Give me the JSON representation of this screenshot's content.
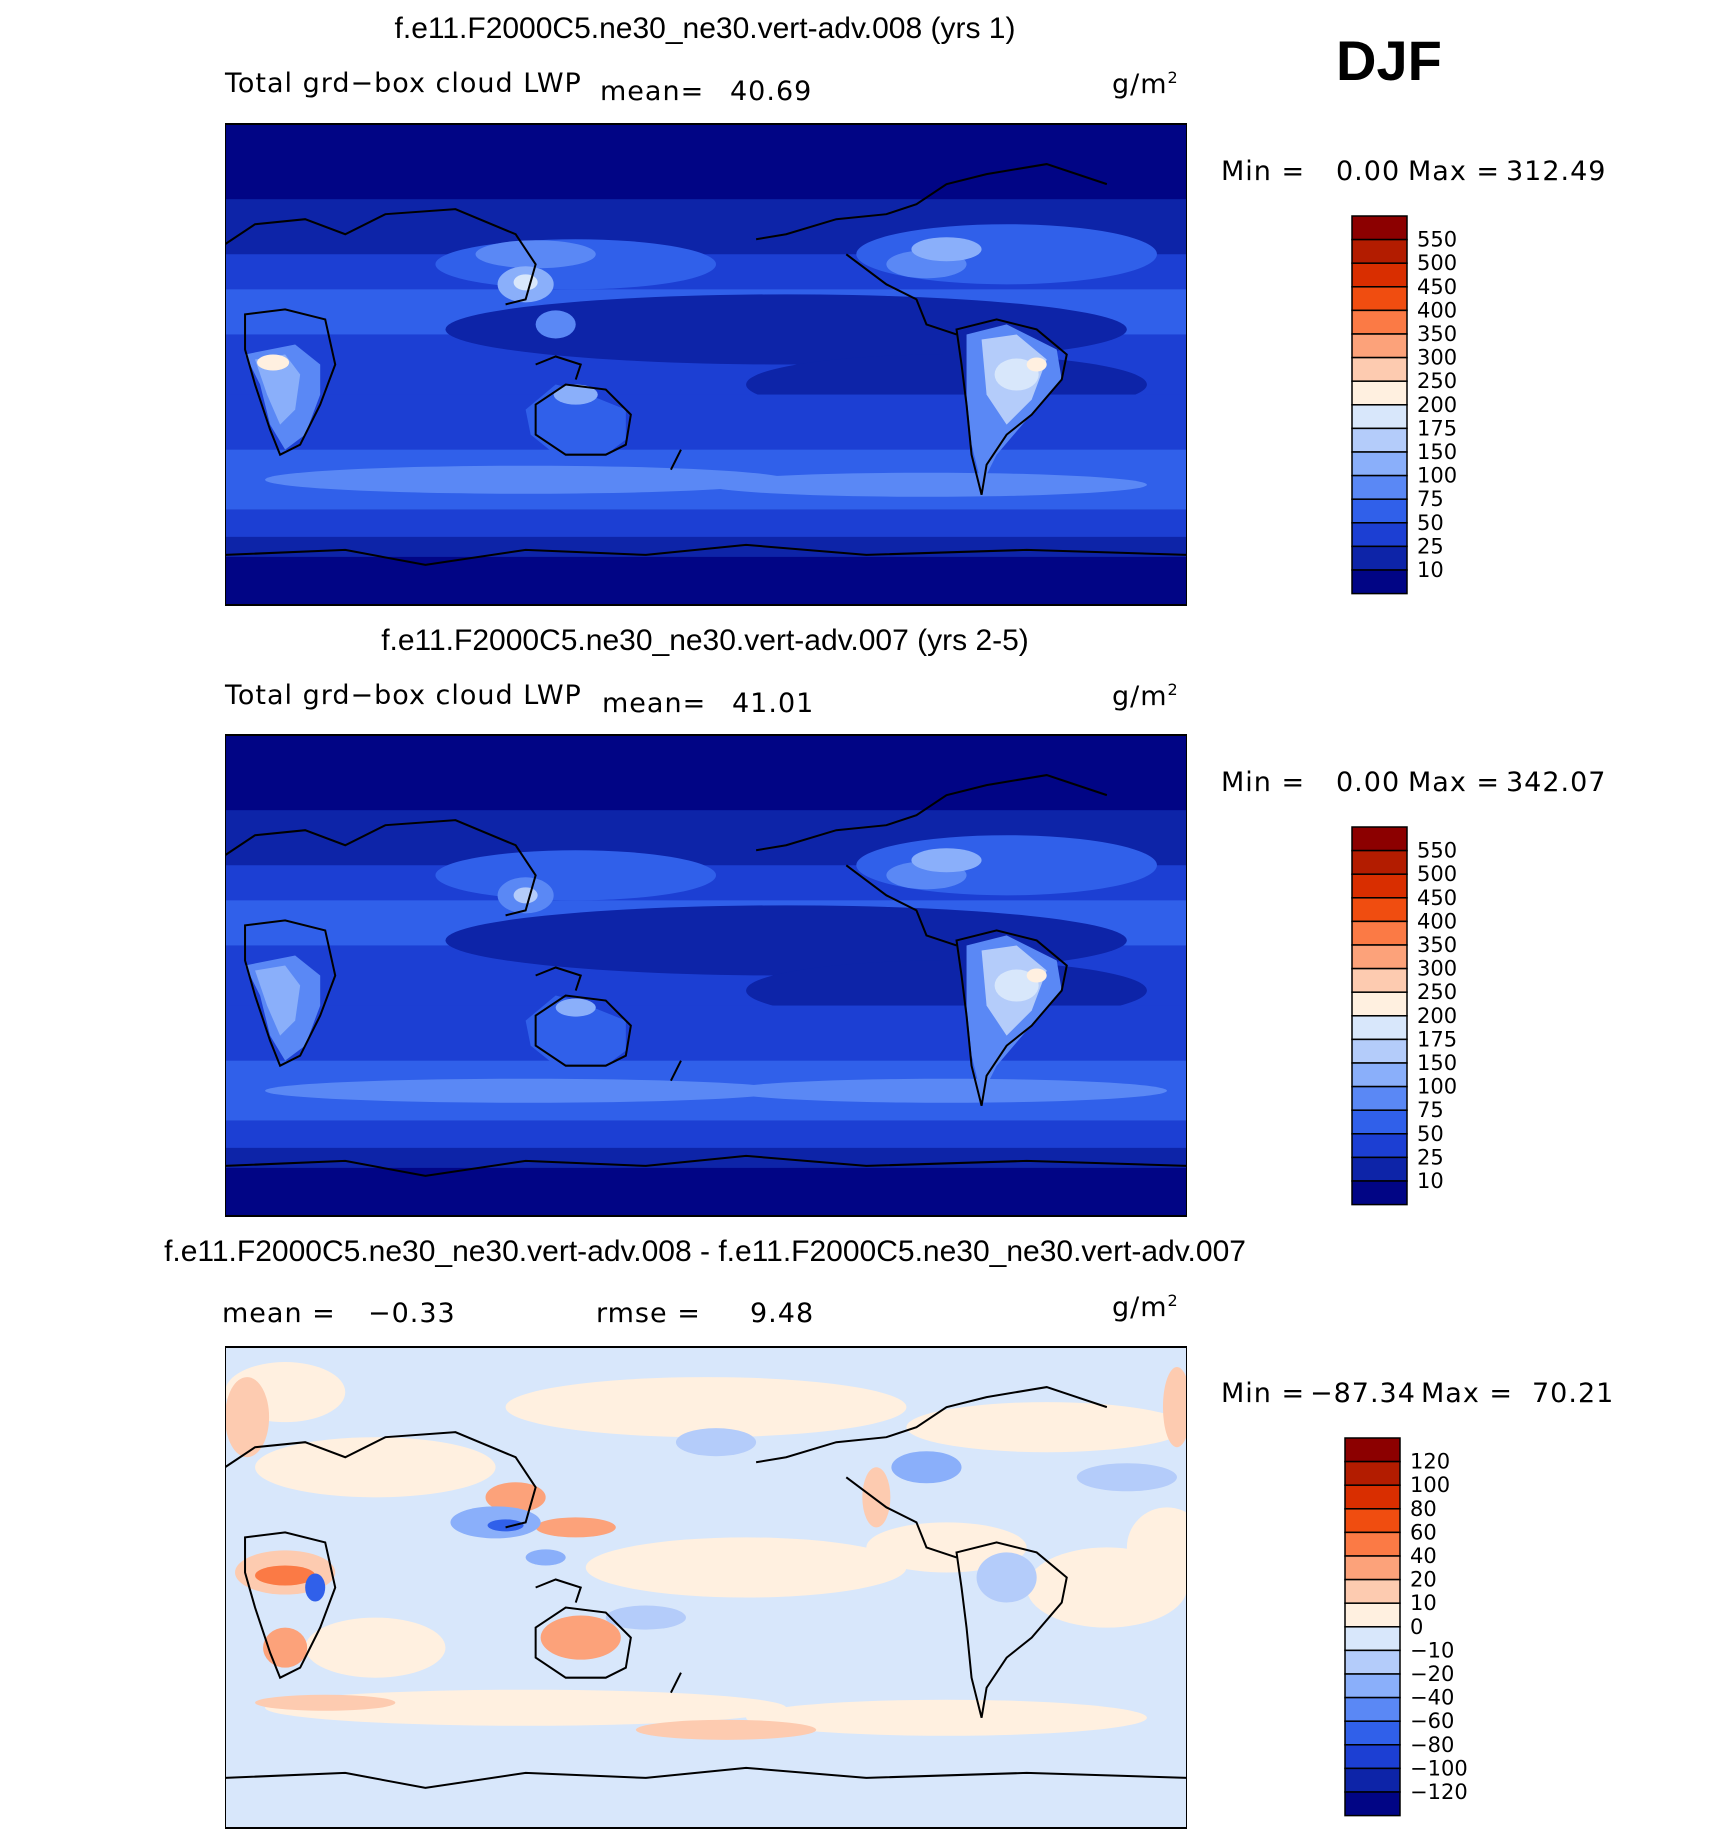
{
  "season": "DJF",
  "unit_prefix": "g/m",
  "unit_exp": "2",
  "panels": [
    {
      "title": "f.e11.F2000C5.ne30_ne30.vert-adv.008 (yrs 1)",
      "variable": "Total grd−box cloud LWP",
      "stat1_label": "mean=",
      "stat1_value": "40.69",
      "min_label": "Min =",
      "min_value": "0.00",
      "max_label": "Max =",
      "max_value": "312.49"
    },
    {
      "title": "f.e11.F2000C5.ne30_ne30.vert-adv.007 (yrs 2-5)",
      "variable": "Total grd−box cloud LWP",
      "stat1_label": "mean=",
      "stat1_value": "41.01",
      "min_label": "Min =",
      "min_value": "0.00",
      "max_label": "Max =",
      "max_value": "342.07"
    },
    {
      "title": "f.e11.F2000C5.ne30_ne30.vert-adv.008 - f.e11.F2000C5.ne30_ne30.vert-adv.007",
      "stat1_label": "mean =",
      "stat1_value": "−0.33",
      "stat2_label": "rmse =",
      "stat2_value": "9.48",
      "min_label": "Min =",
      "min_value": "−87.34",
      "max_label": "Max =",
      "max_value": "70.21"
    }
  ],
  "chart_data": [
    {
      "type": "heatmap",
      "title": "f.e11.F2000C5.ne30_ne30.vert-adv.008 (yrs 1)",
      "subtitle": "Total grd−box cloud LWP",
      "units": "g/m2",
      "mean": 40.69,
      "min": 0.0,
      "max": 312.49,
      "contour_levels": [
        10,
        25,
        50,
        75,
        100,
        150,
        175,
        200,
        250,
        300,
        350,
        400,
        450,
        500,
        550
      ],
      "colorbar_labels": [
        "550",
        "500",
        "450",
        "400",
        "350",
        "300",
        "250",
        "200",
        "175",
        "150",
        "100",
        "75",
        "50",
        "25",
        "10"
      ],
      "colors": [
        "#8c0000",
        "#b31c00",
        "#d92e00",
        "#f04d10",
        "#fb7a45",
        "#fca27a",
        "#fdcbb0",
        "#fff0e0",
        "#d8e7fb",
        "#b4ccfa",
        "#8aaffa",
        "#5a88f5",
        "#3060ea",
        "#1c3fd3",
        "#0d24a8",
        "#010585"
      ]
    },
    {
      "type": "heatmap",
      "title": "f.e11.F2000C5.ne30_ne30.vert-adv.007 (yrs 2-5)",
      "subtitle": "Total grd−box cloud LWP",
      "units": "g/m2",
      "mean": 41.01,
      "min": 0.0,
      "max": 342.07,
      "contour_levels": [
        10,
        25,
        50,
        75,
        100,
        150,
        175,
        200,
        250,
        300,
        350,
        400,
        450,
        500,
        550
      ],
      "colorbar_labels": [
        "550",
        "500",
        "450",
        "400",
        "350",
        "300",
        "250",
        "200",
        "175",
        "150",
        "100",
        "75",
        "50",
        "25",
        "10"
      ],
      "colors": [
        "#8c0000",
        "#b31c00",
        "#d92e00",
        "#f04d10",
        "#fb7a45",
        "#fca27a",
        "#fdcbb0",
        "#fff0e0",
        "#d8e7fb",
        "#b4ccfa",
        "#8aaffa",
        "#5a88f5",
        "#3060ea",
        "#1c3fd3",
        "#0d24a8",
        "#010585"
      ]
    },
    {
      "type": "heatmap",
      "title": "f.e11.F2000C5.ne30_ne30.vert-adv.008 - f.e11.F2000C5.ne30_ne30.vert-adv.007",
      "units": "g/m2",
      "mean": -0.33,
      "rmse": 9.48,
      "min": -87.34,
      "max": 70.21,
      "contour_levels": [
        -120,
        -100,
        -80,
        -60,
        -40,
        -20,
        -10,
        0,
        10,
        20,
        40,
        60,
        80,
        100,
        120
      ],
      "colorbar_labels": [
        "120",
        "100",
        "80",
        "60",
        "40",
        "20",
        "10",
        "0",
        "−10",
        "−20",
        "−40",
        "−60",
        "−80",
        "−100",
        "−120"
      ],
      "colors": [
        "#8c0000",
        "#b31c00",
        "#d92e00",
        "#f04d10",
        "#fb7a45",
        "#fca27a",
        "#fdcbb0",
        "#fff0e0",
        "#d8e7fb",
        "#b4ccfa",
        "#8aaffa",
        "#5a88f5",
        "#3060ea",
        "#1c3fd3",
        "#0d24a8",
        "#010585"
      ]
    }
  ]
}
